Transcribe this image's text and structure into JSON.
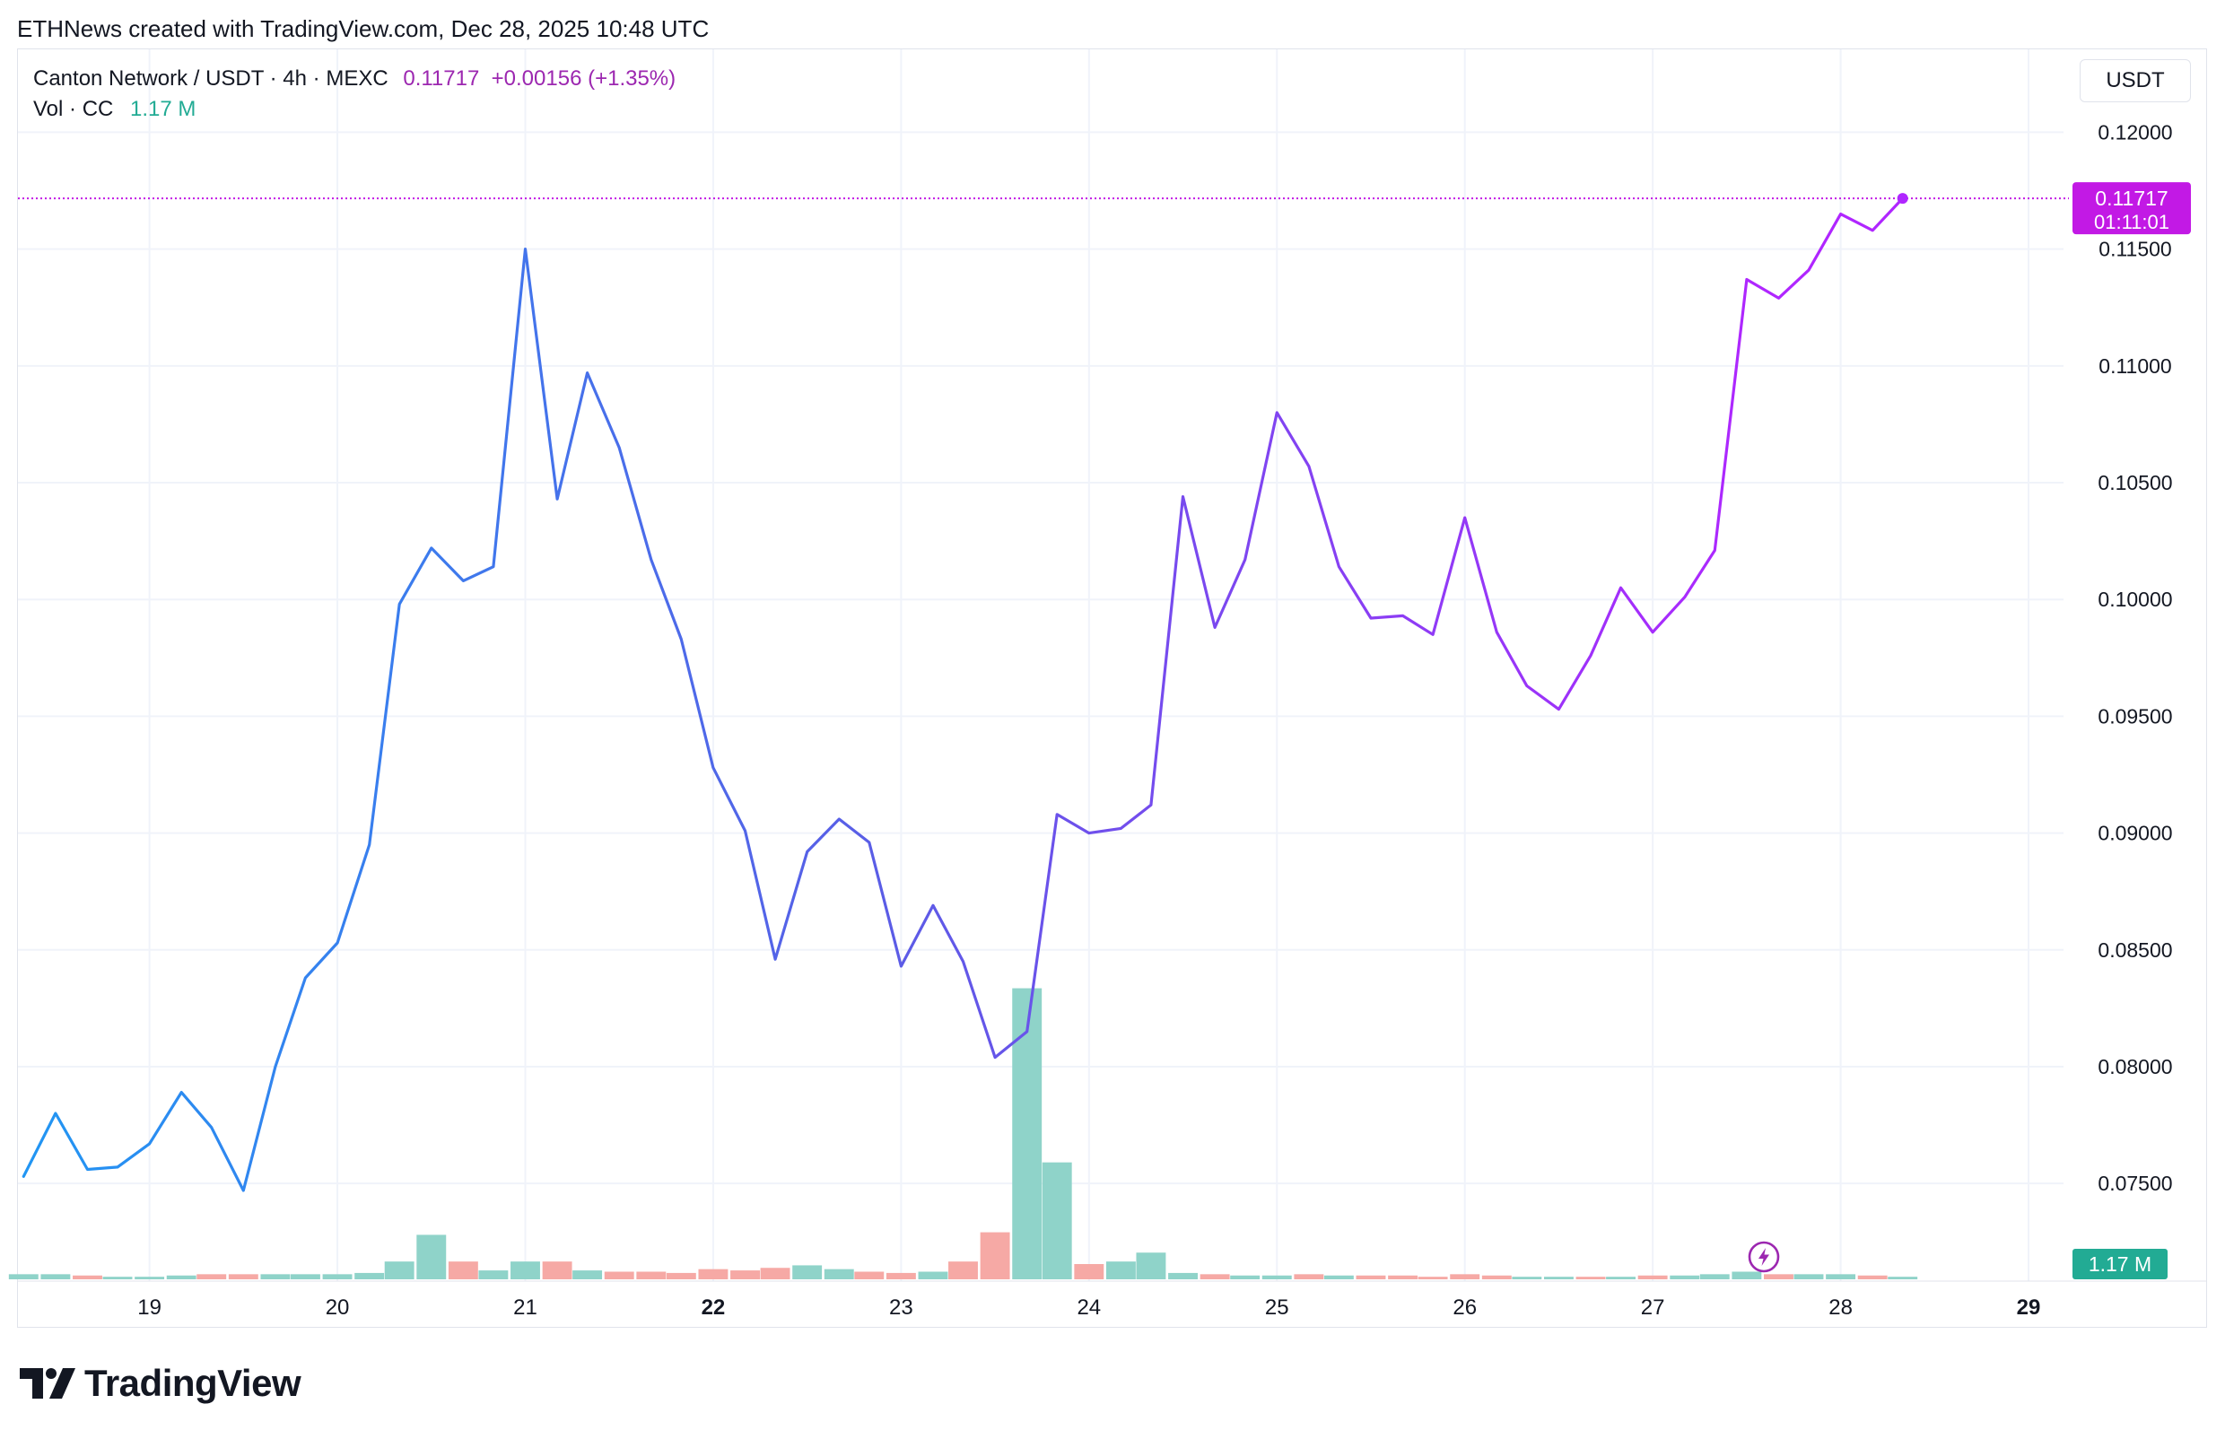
{
  "caption": "ETHNews created with TradingView.com, Dec 28, 2025 10:48 UTC",
  "legend": {
    "symbol": "Canton Network / USDT · 4h · MEXC",
    "quote": "0.11717  +0.00156 (+1.35%)",
    "volume_label": "Vol · CC",
    "volume_value": "1.17 M"
  },
  "currency_button": "USDT",
  "last_price_badge": {
    "price": "0.11717",
    "countdown": "01:11:01"
  },
  "volume_badge": "1.17 M",
  "brand": "TradingView",
  "icons": {
    "logo": "tradingview-logo-icon",
    "bolt": "lightning-bolt-icon"
  },
  "colors": {
    "line_start": "#2196f3",
    "line_mid": "#5b5ce6",
    "line_end": "#b026ff",
    "price_badge": "#c219e5",
    "volume_up": "#8fd3c9",
    "volume_down": "#f6a9a5",
    "volume_badge": "#22ab94",
    "grid": "#f0f3fa"
  },
  "chart_data": {
    "type": "line",
    "title": "Canton Network / USDT · 4h · MEXC",
    "x_unit": "day of December 2025",
    "xlim": [
      18.3,
      29.95
    ],
    "ylim": [
      0.07082,
      0.12355
    ],
    "y_ticks": [
      "0.07500",
      "0.08000",
      "0.08500",
      "0.09000",
      "0.09500",
      "0.10000",
      "0.10500",
      "0.11000",
      "0.11500",
      "0.12000"
    ],
    "y_tick_values": [
      0.075,
      0.08,
      0.085,
      0.09,
      0.095,
      0.1,
      0.105,
      0.11,
      0.115,
      0.12
    ],
    "x_ticks": [
      "19",
      "20",
      "21",
      "22",
      "23",
      "24",
      "25",
      "26",
      "27",
      "28",
      "29"
    ],
    "x_tick_values": [
      19,
      20,
      21,
      22,
      23,
      24,
      25,
      26,
      27,
      28,
      29
    ],
    "x_ticks_bold": [
      "22",
      "29"
    ],
    "grid": true,
    "last_price": 0.11717,
    "series": [
      {
        "values": [
          [
            18.33,
            0.0753
          ],
          [
            18.5,
            0.078
          ],
          [
            18.67,
            0.0756
          ],
          [
            18.83,
            0.0757
          ],
          [
            19.0,
            0.0767
          ],
          [
            19.17,
            0.0789
          ],
          [
            19.33,
            0.0774
          ],
          [
            19.5,
            0.0747
          ],
          [
            19.67,
            0.08
          ],
          [
            19.83,
            0.0838
          ],
          [
            20.0,
            0.0853
          ],
          [
            20.17,
            0.0895
          ],
          [
            20.33,
            0.0998
          ],
          [
            20.5,
            0.1022
          ],
          [
            20.67,
            0.1008
          ],
          [
            20.83,
            0.1014
          ],
          [
            21.0,
            0.115
          ],
          [
            21.17,
            0.1043
          ],
          [
            21.33,
            0.1097
          ],
          [
            21.5,
            0.1065
          ],
          [
            21.67,
            0.1017
          ],
          [
            21.83,
            0.0983
          ],
          [
            22.0,
            0.0928
          ],
          [
            22.17,
            0.0901
          ],
          [
            22.33,
            0.0846
          ],
          [
            22.5,
            0.0892
          ],
          [
            22.67,
            0.0906
          ],
          [
            22.83,
            0.0896
          ],
          [
            23.0,
            0.0843
          ],
          [
            23.17,
            0.0869
          ],
          [
            23.33,
            0.0845
          ],
          [
            23.5,
            0.0804
          ],
          [
            23.67,
            0.0815
          ],
          [
            23.83,
            0.0908
          ],
          [
            24.0,
            0.09
          ],
          [
            24.17,
            0.0902
          ],
          [
            24.33,
            0.0912
          ],
          [
            24.5,
            0.1044
          ],
          [
            24.67,
            0.0988
          ],
          [
            24.83,
            0.1017
          ],
          [
            25.0,
            0.108
          ],
          [
            25.17,
            0.1057
          ],
          [
            25.33,
            0.1014
          ],
          [
            25.5,
            0.0992
          ],
          [
            25.67,
            0.0993
          ],
          [
            25.83,
            0.0985
          ],
          [
            26.0,
            0.1035
          ],
          [
            26.17,
            0.0986
          ],
          [
            26.33,
            0.0963
          ],
          [
            26.5,
            0.0953
          ],
          [
            26.67,
            0.0976
          ],
          [
            26.83,
            0.1005
          ],
          [
            27.0,
            0.0986
          ],
          [
            27.17,
            0.1001
          ],
          [
            27.33,
            0.1021
          ],
          [
            27.5,
            0.1137
          ],
          [
            27.67,
            0.1129
          ],
          [
            27.83,
            0.1141
          ],
          [
            28.0,
            0.1165
          ],
          [
            28.17,
            0.1158
          ],
          [
            28.33,
            0.11717
          ]
        ]
      }
    ],
    "volume": {
      "max": 12,
      "bars": [
        [
          18.33,
          0.2,
          "up"
        ],
        [
          18.5,
          0.2,
          "up"
        ],
        [
          18.67,
          0.15,
          "down"
        ],
        [
          18.83,
          0.1,
          "up"
        ],
        [
          19.0,
          0.1,
          "up"
        ],
        [
          19.17,
          0.15,
          "up"
        ],
        [
          19.33,
          0.2,
          "down"
        ],
        [
          19.5,
          0.2,
          "down"
        ],
        [
          19.67,
          0.2,
          "up"
        ],
        [
          19.83,
          0.2,
          "up"
        ],
        [
          20.0,
          0.2,
          "up"
        ],
        [
          20.17,
          0.25,
          "up"
        ],
        [
          20.33,
          0.7,
          "up"
        ],
        [
          20.5,
          1.75,
          "up"
        ],
        [
          20.67,
          0.7,
          "down"
        ],
        [
          20.83,
          0.35,
          "up"
        ],
        [
          21.0,
          0.7,
          "up"
        ],
        [
          21.17,
          0.7,
          "down"
        ],
        [
          21.33,
          0.35,
          "up"
        ],
        [
          21.5,
          0.3,
          "down"
        ],
        [
          21.67,
          0.3,
          "down"
        ],
        [
          21.83,
          0.25,
          "down"
        ],
        [
          22.0,
          0.4,
          "down"
        ],
        [
          22.17,
          0.35,
          "down"
        ],
        [
          22.33,
          0.45,
          "down"
        ],
        [
          22.5,
          0.55,
          "up"
        ],
        [
          22.67,
          0.4,
          "up"
        ],
        [
          22.83,
          0.3,
          "down"
        ],
        [
          23.0,
          0.25,
          "down"
        ],
        [
          23.17,
          0.3,
          "up"
        ],
        [
          23.33,
          0.7,
          "down"
        ],
        [
          23.5,
          1.85,
          "down"
        ],
        [
          23.67,
          11.45,
          "up"
        ],
        [
          23.83,
          4.6,
          "up"
        ],
        [
          24.0,
          0.6,
          "down"
        ],
        [
          24.17,
          0.7,
          "up"
        ],
        [
          24.33,
          1.05,
          "up"
        ],
        [
          24.5,
          0.25,
          "up"
        ],
        [
          24.67,
          0.2,
          "down"
        ],
        [
          24.83,
          0.15,
          "up"
        ],
        [
          25.0,
          0.15,
          "up"
        ],
        [
          25.17,
          0.2,
          "down"
        ],
        [
          25.33,
          0.15,
          "up"
        ],
        [
          25.5,
          0.15,
          "down"
        ],
        [
          25.67,
          0.15,
          "down"
        ],
        [
          25.83,
          0.1,
          "down"
        ],
        [
          26.0,
          0.2,
          "down"
        ],
        [
          26.17,
          0.15,
          "down"
        ],
        [
          26.33,
          0.1,
          "up"
        ],
        [
          26.5,
          0.1,
          "up"
        ],
        [
          26.67,
          0.1,
          "down"
        ],
        [
          26.83,
          0.1,
          "up"
        ],
        [
          27.0,
          0.15,
          "down"
        ],
        [
          27.17,
          0.15,
          "up"
        ],
        [
          27.33,
          0.2,
          "up"
        ],
        [
          27.5,
          0.3,
          "up"
        ],
        [
          27.67,
          0.2,
          "down"
        ],
        [
          27.83,
          0.2,
          "up"
        ],
        [
          28.0,
          0.2,
          "up"
        ],
        [
          28.17,
          0.15,
          "down"
        ],
        [
          28.33,
          0.1,
          "up"
        ]
      ]
    }
  }
}
